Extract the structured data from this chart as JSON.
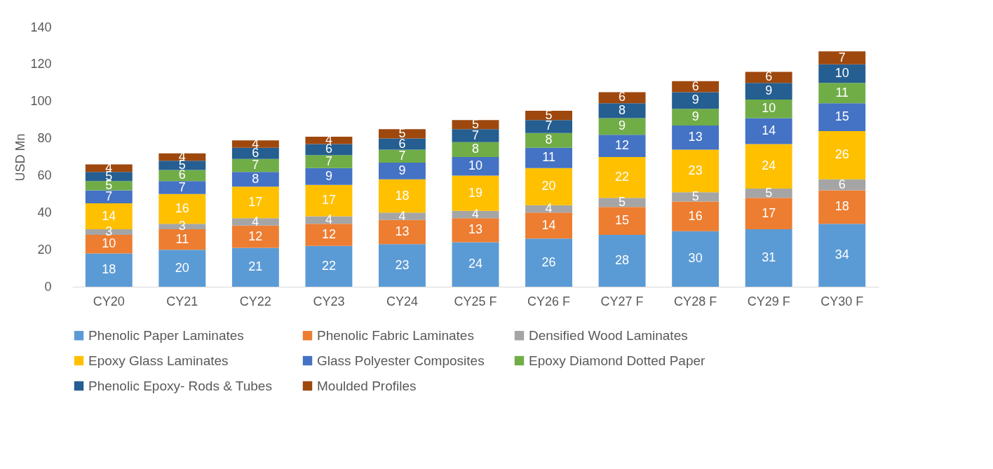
{
  "chart_data": {
    "type": "bar",
    "stacked": true,
    "ylabel": "USD Mn",
    "categories": [
      "CY20",
      "CY21",
      "CY22",
      "CY23",
      "CY24",
      "CY25 F",
      "CY26 F",
      "CY27 F",
      "CY28 F",
      "CY29 F",
      "CY30 F"
    ],
    "ylim": [
      0,
      140
    ],
    "yticks": [
      0,
      20,
      40,
      60,
      80,
      100,
      120,
      140
    ],
    "grid": false,
    "legend": "bottom",
    "data_labels": true,
    "series": [
      {
        "name": "Phenolic Paper Laminates",
        "color": "#5b9bd5",
        "values": [
          18,
          20,
          21,
          22,
          23,
          24,
          26,
          28,
          30,
          31,
          34
        ]
      },
      {
        "name": "Phenolic Fabric Laminates",
        "color": "#ed7d31",
        "values": [
          10,
          11,
          12,
          12,
          13,
          13,
          14,
          15,
          16,
          17,
          18
        ]
      },
      {
        "name": "Densified Wood Laminates",
        "color": "#a5a5a5",
        "values": [
          3,
          3,
          4,
          4,
          4,
          4,
          4,
          5,
          5,
          5,
          6
        ]
      },
      {
        "name": "Epoxy Glass Laminates",
        "color": "#ffc000",
        "values": [
          14,
          16,
          17,
          17,
          18,
          19,
          20,
          22,
          23,
          24,
          26
        ]
      },
      {
        "name": "Glass Polyester Composites",
        "color": "#4472c4",
        "values": [
          7,
          7,
          8,
          9,
          9,
          10,
          11,
          12,
          13,
          14,
          15
        ]
      },
      {
        "name": "Epoxy Diamond Dotted Paper",
        "color": "#70ad47",
        "values": [
          5,
          6,
          7,
          7,
          7,
          8,
          8,
          9,
          9,
          10,
          11
        ]
      },
      {
        "name": "Phenolic Epoxy- Rods & Tubes",
        "color": "#255e91",
        "values": [
          5,
          5,
          6,
          6,
          6,
          7,
          7,
          8,
          9,
          9,
          10
        ]
      },
      {
        "name": "Moulded Profiles",
        "color": "#9e480e",
        "values": [
          4,
          4,
          4,
          4,
          5,
          5,
          5,
          6,
          6,
          6,
          7
        ]
      }
    ]
  }
}
